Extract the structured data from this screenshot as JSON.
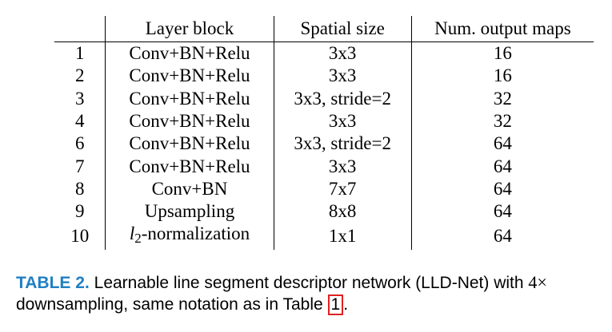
{
  "table": {
    "headers": {
      "id": "",
      "layer": "Layer block",
      "size": "Spatial size",
      "maps": "Num. output maps"
    },
    "rows": [
      {
        "id": "1",
        "layer": "Conv+BN+Relu",
        "size": "3x3",
        "maps": "16"
      },
      {
        "id": "2",
        "layer": "Conv+BN+Relu",
        "size": "3x3",
        "maps": "16"
      },
      {
        "id": "3",
        "layer": "Conv+BN+Relu",
        "size": "3x3, stride=2",
        "maps": "32"
      },
      {
        "id": "4",
        "layer": "Conv+BN+Relu",
        "size": "3x3",
        "maps": "32"
      },
      {
        "id": "6",
        "layer": "Conv+BN+Relu",
        "size": "3x3, stride=2",
        "maps": "64"
      },
      {
        "id": "7",
        "layer": "Conv+BN+Relu",
        "size": "3x3",
        "maps": "64"
      },
      {
        "id": "8",
        "layer": "Conv+BN",
        "size": "7x7",
        "maps": "64"
      },
      {
        "id": "9",
        "layer": "Upsampling",
        "size": "8x8",
        "maps": "64"
      },
      {
        "id": "10",
        "layer_math": {
          "base": "l",
          "sub": "2"
        },
        "layer": "-normalization",
        "size": "1x1",
        "maps": "64"
      }
    ]
  },
  "caption": {
    "label": "TABLE 2.",
    "text_before": "Learnable line segment descriptor network (LLD-Net) with",
    "math": "4×",
    "text_after": "downsampling, same notation as in Table",
    "ref": "1",
    "end": "."
  },
  "colors": {
    "caption_label": "#1f7fc4",
    "ref_box": "#e02020"
  }
}
